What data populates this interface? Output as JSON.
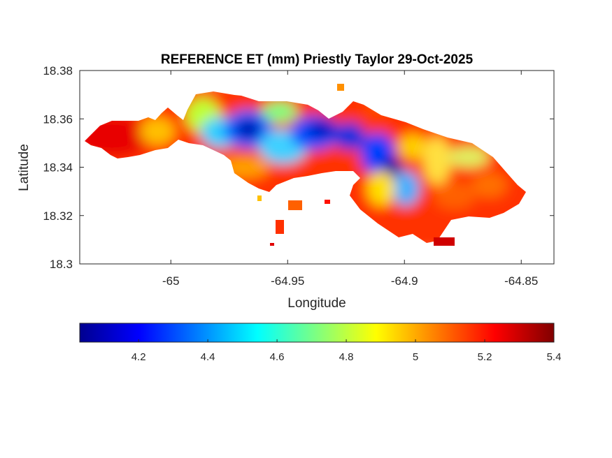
{
  "figure": {
    "title": "REFERENCE ET (mm) Priestly Taylor 29-Oct-2025",
    "xlabel": "Longitude",
    "ylabel": "Latitude"
  },
  "chart_data": {
    "type": "heatmap",
    "title": "REFERENCE ET (mm) Priestly Taylor 29-Oct-2025",
    "xlabel": "Longitude",
    "ylabel": "Latitude",
    "xlim": [
      -65.039,
      -64.836
    ],
    "ylim": [
      18.3,
      18.38
    ],
    "x_ticks": [
      "-65",
      "-64.95",
      "-64.9",
      "-64.85"
    ],
    "y_ticks": [
      "18.3",
      "18.32",
      "18.34",
      "18.36",
      "18.38"
    ],
    "colormap": "jet",
    "clim": [
      4.03,
      5.4
    ],
    "colorbar_ticks": [
      "4.2",
      "4.4",
      "4.6",
      "4.8",
      "5",
      "5.2",
      "5.4"
    ],
    "colorbar_location": "southoutside",
    "grid": false,
    "value_regions": [
      {
        "lon": -65.025,
        "lat": 18.352,
        "value": 5.3
      },
      {
        "lon": -65.005,
        "lat": 18.352,
        "value": 5.0
      },
      {
        "lon": -64.985,
        "lat": 18.363,
        "value": 4.85
      },
      {
        "lon": -64.967,
        "lat": 18.355,
        "value": 4.1
      },
      {
        "lon": -64.955,
        "lat": 18.345,
        "value": 4.55
      },
      {
        "lon": -64.943,
        "lat": 18.355,
        "value": 4.15
      },
      {
        "lon": -64.915,
        "lat": 18.345,
        "value": 4.2
      },
      {
        "lon": -64.903,
        "lat": 18.33,
        "value": 4.5
      },
      {
        "lon": -64.885,
        "lat": 18.335,
        "value": 5.15
      },
      {
        "lon": -64.87,
        "lat": 18.34,
        "value": 5.1
      },
      {
        "lon": -64.92,
        "lat": 18.325,
        "value": 5.3
      },
      {
        "lon": -64.945,
        "lat": 18.332,
        "value": 5.15
      }
    ]
  }
}
